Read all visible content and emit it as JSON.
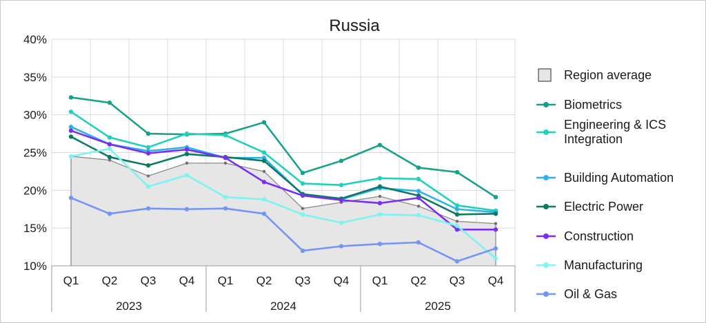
{
  "chart_data": {
    "type": "line",
    "title": "Russia",
    "xlabel": "",
    "ylabel": "",
    "ylim": [
      10,
      40
    ],
    "y_ticks": [
      10,
      15,
      20,
      25,
      30,
      35,
      40
    ],
    "y_tick_labels": [
      "10%",
      "15%",
      "20%",
      "25%",
      "30%",
      "35%",
      "40%"
    ],
    "categories": [
      "Q1",
      "Q2",
      "Q3",
      "Q4",
      "Q1",
      "Q2",
      "Q3",
      "Q4",
      "Q1",
      "Q2",
      "Q3",
      "Q4"
    ],
    "groups": [
      {
        "label": "2023"
      },
      {
        "label": "2024"
      },
      {
        "label": "2025"
      }
    ],
    "grid": true,
    "legend_position": "right",
    "area": {
      "name": "Region average",
      "color": "#8a8a8a",
      "fill": "#e6e6e6",
      "values": [
        24.5,
        24.0,
        21.9,
        23.6,
        23.6,
        22.5,
        17.6,
        18.4,
        19.2,
        17.9,
        15.9,
        15.6
      ]
    },
    "series": [
      {
        "name": "Biometrics",
        "color": "#16a18c",
        "values": [
          32.3,
          31.6,
          27.5,
          27.4,
          27.5,
          29.0,
          22.3,
          23.9,
          26.0,
          23.0,
          22.4,
          19.1
        ]
      },
      {
        "name": "Engineering & ICS Integration",
        "color": "#1fd0bb",
        "values": [
          30.4,
          27.0,
          25.7,
          27.5,
          27.3,
          25.0,
          20.9,
          20.7,
          21.6,
          21.5,
          18.0,
          17.3
        ]
      },
      {
        "name": "Building Automation",
        "color": "#2eb1e8",
        "values": [
          28.4,
          26.1,
          25.2,
          25.7,
          24.3,
          24.3,
          19.4,
          18.8,
          20.3,
          19.9,
          17.5,
          17.1
        ]
      },
      {
        "name": "Electric Power",
        "color": "#0b7a64",
        "values": [
          27.1,
          24.4,
          23.3,
          24.8,
          24.4,
          23.9,
          19.5,
          18.9,
          20.5,
          19.3,
          16.8,
          16.9
        ]
      },
      {
        "name": "Construction",
        "color": "#7a2ff0",
        "values": [
          27.9,
          26.1,
          24.9,
          25.4,
          24.3,
          21.1,
          19.3,
          18.7,
          18.3,
          19.0,
          14.8,
          14.8
        ]
      },
      {
        "name": "Manufacturing",
        "color": "#7cf3f0",
        "values": [
          24.5,
          25.5,
          20.5,
          22.0,
          19.1,
          18.8,
          16.8,
          15.7,
          16.8,
          16.7,
          15.3,
          11.0
        ]
      },
      {
        "name": "Oil & Gas",
        "color": "#7595f5",
        "values": [
          19.0,
          16.9,
          17.6,
          17.5,
          17.6,
          16.9,
          12.0,
          12.6,
          12.9,
          13.1,
          10.6,
          12.3
        ]
      }
    ],
    "legend": [
      {
        "label": "Region average"
      },
      {
        "label": "Biometrics"
      },
      {
        "label": "Engineering & ICS",
        "label2": "Integration"
      },
      {
        "label": "Building Automation"
      },
      {
        "label": "Electric Power"
      },
      {
        "label": "Construction"
      },
      {
        "label": "Manufacturing"
      },
      {
        "label": "Oil & Gas"
      }
    ]
  }
}
